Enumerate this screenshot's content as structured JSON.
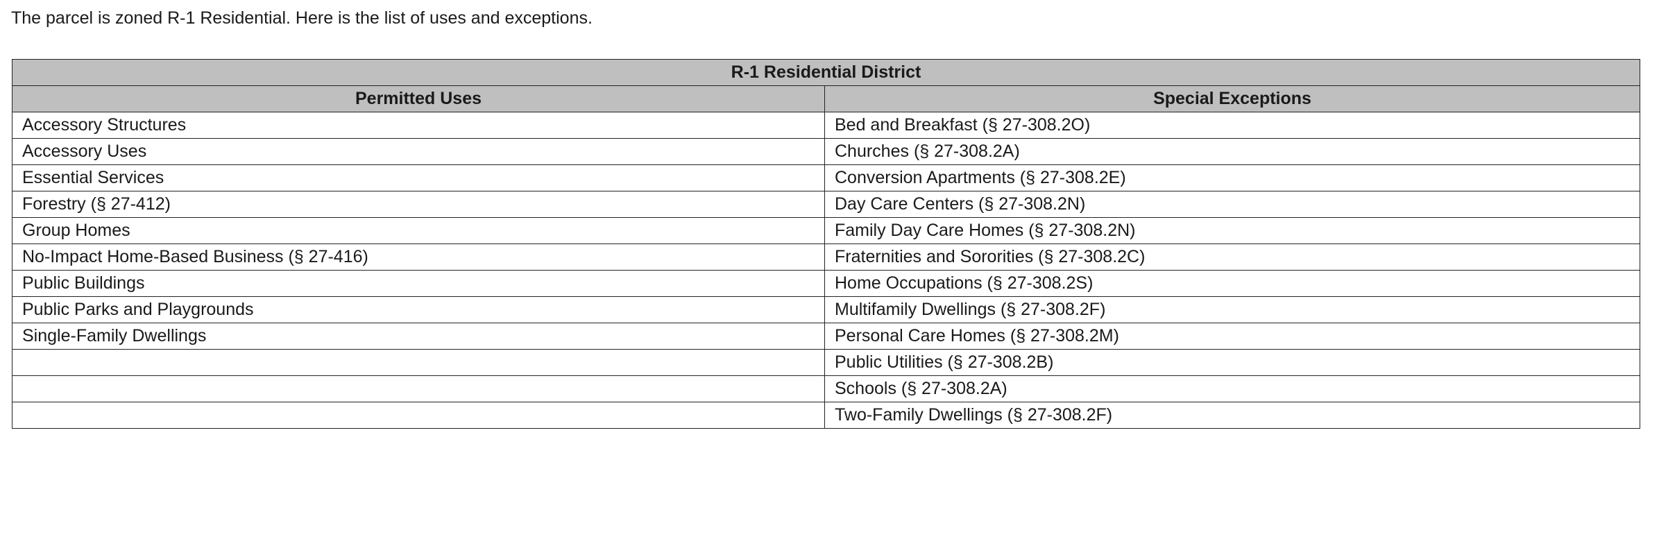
{
  "intro": "The parcel is zoned R-1 Residential. Here is the list of uses and exceptions.",
  "table": {
    "title": "R-1 Residential District",
    "headers": [
      "Permitted Uses",
      "Special Exceptions"
    ],
    "rows": [
      [
        "Accessory Structures",
        "Bed and Breakfast (§ 27-308.2O)"
      ],
      [
        "Accessory Uses",
        "Churches (§ 27-308.2A)"
      ],
      [
        "Essential Services",
        "Conversion Apartments (§ 27-308.2E)"
      ],
      [
        "Forestry (§ 27-412)",
        "Day Care Centers (§ 27-308.2N)"
      ],
      [
        "Group Homes",
        "Family Day Care Homes (§ 27-308.2N)"
      ],
      [
        "No-Impact Home-Based Business (§ 27-416)",
        "Fraternities and Sororities (§ 27-308.2C)"
      ],
      [
        "Public Buildings",
        "Home Occupations (§ 27-308.2S)"
      ],
      [
        "Public Parks and Playgrounds",
        "Multifamily Dwellings (§ 27-308.2F)"
      ],
      [
        "Single-Family Dwellings",
        "Personal Care Homes (§ 27-308.2M)"
      ],
      [
        null,
        "Public Utilities (§ 27-308.2B)"
      ],
      [
        null,
        "Schools (§ 27-308.2A)"
      ],
      [
        null,
        "Two-Family Dwellings (§ 27-308.2F)"
      ]
    ]
  }
}
